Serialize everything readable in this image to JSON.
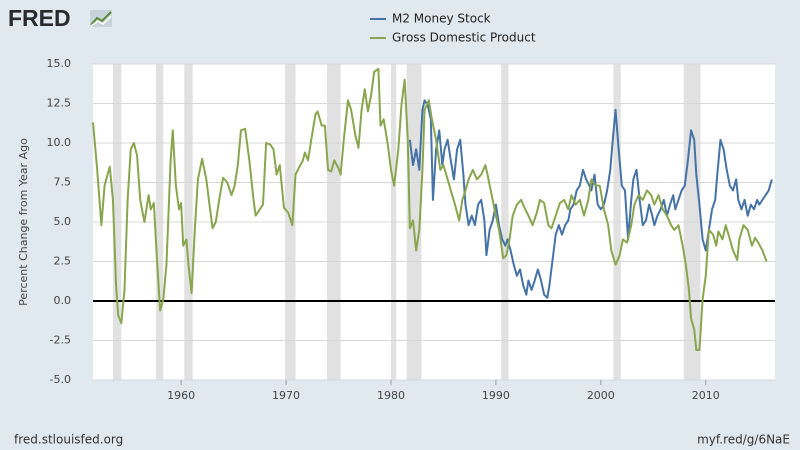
{
  "chart_data": {
    "type": "line",
    "logo": "FRED",
    "ylabel": "Percent Change from Year Ago",
    "source": "fred.stlouisfed.org",
    "link": "myf.red/g/6NaE",
    "xlim": [
      1951.6,
      2016.6
    ],
    "xticks": [
      1960,
      1970,
      1980,
      1990,
      2000,
      2010
    ],
    "ylim": [
      -5,
      15
    ],
    "yticks": [
      {
        "value": -5,
        "label": "-5.0"
      },
      {
        "value": -2.5,
        "label": "-2.5"
      },
      {
        "value": 0,
        "label": "0.0"
      },
      {
        "value": 2.5,
        "label": "2.5"
      },
      {
        "value": 5,
        "label": "5.0"
      },
      {
        "value": 7.5,
        "label": "7.5"
      },
      {
        "value": 10,
        "label": "10.0"
      },
      {
        "value": 12.5,
        "label": "12.5"
      },
      {
        "value": 15,
        "label": "15.0"
      }
    ],
    "grid": true,
    "recession_color": "#e1e1e1",
    "recessions": [
      [
        1953.5,
        1954.3
      ],
      [
        1957.6,
        1958.3
      ],
      [
        1960.3,
        1961.1
      ],
      [
        1969.9,
        1970.9
      ],
      [
        1973.9,
        1975.2
      ],
      [
        1980.0,
        1980.5
      ],
      [
        1981.5,
        1982.9
      ],
      [
        1990.5,
        1991.2
      ],
      [
        2001.2,
        2001.9
      ],
      [
        2007.9,
        2009.5
      ]
    ],
    "series": [
      {
        "name": "M2 Money Stock",
        "color": "#4572a7",
        "x": [
          1981.8,
          1982.1,
          1982.4,
          1982.7,
          1983.0,
          1983.2,
          1983.5,
          1983.8,
          1984.0,
          1984.3,
          1984.6,
          1984.9,
          1985.1,
          1985.4,
          1985.7,
          1986.0,
          1986.3,
          1986.6,
          1986.9,
          1987.1,
          1987.4,
          1987.7,
          1988.0,
          1988.3,
          1988.6,
          1988.9,
          1989.1,
          1989.4,
          1989.7,
          1990.0,
          1990.3,
          1990.6,
          1990.9,
          1991.1,
          1991.4,
          1991.7,
          1992.0,
          1992.3,
          1992.6,
          1992.9,
          1993.1,
          1993.4,
          1993.7,
          1994.0,
          1994.3,
          1994.6,
          1994.9,
          1995.1,
          1995.4,
          1995.7,
          1996.0,
          1996.3,
          1996.6,
          1996.9,
          1997.1,
          1997.4,
          1997.7,
          1998.0,
          1998.3,
          1998.6,
          1998.9,
          1999.1,
          1999.4,
          1999.7,
          2000.0,
          2000.3,
          2000.6,
          2000.9,
          2001.1,
          2001.4,
          2001.7,
          2002.0,
          2002.3,
          2002.6,
          2002.9,
          2003.1,
          2003.4,
          2003.7,
          2004.0,
          2004.3,
          2004.6,
          2004.9,
          2005.1,
          2005.4,
          2005.7,
          2006.0,
          2006.3,
          2006.6,
          2006.9,
          2007.1,
          2007.4,
          2007.7,
          2008.0,
          2008.3,
          2008.6,
          2008.9,
          2009.1,
          2009.4,
          2009.7,
          2010.0,
          2010.3,
          2010.6,
          2010.9,
          2011.1,
          2011.4,
          2011.7,
          2012.0,
          2012.3,
          2012.6,
          2012.9,
          2013.1,
          2013.4,
          2013.7,
          2014.0,
          2014.3,
          2014.6,
          2014.9,
          2015.1,
          2015.4,
          2015.7,
          2016.0,
          2016.3
        ],
        "values": [
          10.2,
          8.6,
          9.6,
          8.3,
          12.1,
          12.7,
          12.4,
          11.5,
          6.4,
          9.6,
          10.8,
          8.6,
          9.6,
          10.2,
          8.9,
          7.7,
          9.6,
          10.2,
          8.0,
          6.1,
          4.8,
          5.4,
          4.8,
          6.1,
          6.4,
          5.1,
          2.9,
          4.5,
          5.1,
          6.1,
          4.8,
          3.9,
          3.5,
          3.9,
          3.2,
          2.3,
          1.6,
          2.0,
          1.0,
          0.4,
          1.3,
          0.7,
          1.3,
          2.0,
          1.3,
          0.4,
          0.2,
          1.0,
          2.6,
          4.2,
          4.8,
          4.2,
          4.8,
          5.1,
          5.8,
          6.1,
          7.0,
          7.3,
          8.3,
          7.7,
          7.3,
          7.0,
          8.0,
          6.1,
          5.8,
          6.1,
          7.0,
          8.3,
          9.9,
          12.1,
          9.6,
          7.3,
          7.0,
          3.9,
          6.4,
          7.7,
          8.3,
          6.4,
          4.8,
          5.1,
          6.1,
          5.4,
          4.8,
          5.4,
          5.8,
          6.4,
          5.4,
          6.1,
          6.7,
          5.8,
          6.4,
          7.0,
          7.3,
          8.9,
          10.8,
          10.2,
          8.0,
          6.1,
          3.9,
          3.2,
          4.5,
          5.8,
          6.4,
          8.0,
          10.2,
          9.6,
          8.3,
          7.3,
          7.0,
          7.7,
          6.4,
          5.8,
          6.4,
          5.4,
          6.1,
          5.8,
          6.4,
          6.1,
          6.4,
          6.7,
          7.0,
          7.7
        ]
      },
      {
        "name": "Gross Domestic Product",
        "color": "#89a54e",
        "x": [
          1951.6,
          1952.0,
          1952.4,
          1952.7,
          1953.2,
          1953.5,
          1953.8,
          1954.0,
          1954.3,
          1954.6,
          1954.9,
          1955.2,
          1955.5,
          1955.8,
          1956.1,
          1956.5,
          1956.9,
          1957.1,
          1957.4,
          1957.7,
          1958.0,
          1958.3,
          1958.6,
          1959.0,
          1959.2,
          1959.5,
          1959.8,
          1960.0,
          1960.2,
          1960.5,
          1960.7,
          1961.0,
          1961.3,
          1961.6,
          1962.0,
          1962.4,
          1962.7,
          1963.0,
          1963.3,
          1963.7,
          1964.0,
          1964.4,
          1964.8,
          1965.1,
          1965.4,
          1965.7,
          1966.1,
          1966.5,
          1966.9,
          1967.1,
          1967.5,
          1967.8,
          1968.1,
          1968.5,
          1968.8,
          1969.1,
          1969.4,
          1969.8,
          1970.2,
          1970.6,
          1970.9,
          1971.2,
          1971.6,
          1971.8,
          1972.1,
          1972.4,
          1972.8,
          1973.0,
          1973.4,
          1973.7,
          1974.0,
          1974.3,
          1974.6,
          1975.0,
          1975.2,
          1975.5,
          1975.9,
          1976.2,
          1976.6,
          1976.9,
          1977.2,
          1977.5,
          1977.8,
          1978.1,
          1978.4,
          1978.8,
          1979.0,
          1979.3,
          1979.7,
          1980.0,
          1980.3,
          1980.7,
          1981.0,
          1981.3,
          1981.6,
          1981.8,
          1982.1,
          1982.4,
          1982.7,
          1983.0,
          1983.2,
          1983.6,
          1983.9,
          1984.3,
          1984.7,
          1985.0,
          1985.4,
          1985.7,
          1986.1,
          1986.5,
          1986.8,
          1987.1,
          1987.4,
          1987.8,
          1988.2,
          1988.6,
          1989.0,
          1989.2,
          1989.6,
          1990.0,
          1990.3,
          1990.7,
          1991.0,
          1991.3,
          1991.6,
          1992.0,
          1992.4,
          1992.8,
          1993.1,
          1993.5,
          1993.9,
          1994.2,
          1994.6,
          1995.0,
          1995.3,
          1995.7,
          1996.1,
          1996.5,
          1996.9,
          1997.2,
          1997.6,
          1998.0,
          1998.4,
          1998.8,
          1999.1,
          1999.5,
          1999.9,
          2000.3,
          2000.7,
          2001.0,
          2001.4,
          2001.8,
          2002.1,
          2002.5,
          2002.9,
          2003.2,
          2003.6,
          2004.0,
          2004.4,
          2004.8,
          2005.1,
          2005.5,
          2005.9,
          2006.3,
          2006.7,
          2007.0,
          2007.4,
          2007.8,
          2008.1,
          2008.4,
          2008.6,
          2008.9,
          2009.1,
          2009.4,
          2009.7,
          2010.0,
          2010.3,
          2010.7,
          2011.0,
          2011.2,
          2011.6,
          2011.9,
          2012.3,
          2012.6,
          2013.0,
          2013.2,
          2013.6,
          2014.0,
          2014.4,
          2014.7,
          2015.0,
          2015.4,
          2015.8
        ],
        "values": [
          11.3,
          8.3,
          4.8,
          7.3,
          8.5,
          6.4,
          1.0,
          -0.9,
          -1.4,
          0.7,
          6.4,
          9.6,
          10.0,
          9.2,
          6.4,
          5.0,
          6.7,
          5.8,
          6.2,
          2.6,
          -0.6,
          0.1,
          2.3,
          8.9,
          10.8,
          7.3,
          5.8,
          6.2,
          3.5,
          3.9,
          2.3,
          0.5,
          4.5,
          7.7,
          9.0,
          7.7,
          6.1,
          4.6,
          5.0,
          6.7,
          7.8,
          7.5,
          6.7,
          7.3,
          8.6,
          10.8,
          10.9,
          8.9,
          6.4,
          5.4,
          5.8,
          6.1,
          10.0,
          9.9,
          9.6,
          8.0,
          8.6,
          5.9,
          5.6,
          4.8,
          8.0,
          8.4,
          8.9,
          9.4,
          8.9,
          10.2,
          11.8,
          12.0,
          11.1,
          11.1,
          8.3,
          8.2,
          8.9,
          8.4,
          8.0,
          10.2,
          12.7,
          12.1,
          10.5,
          9.7,
          12.1,
          13.4,
          12.0,
          13.0,
          14.5,
          14.7,
          11.1,
          11.5,
          9.9,
          8.3,
          7.3,
          9.6,
          12.4,
          14.0,
          10.2,
          4.6,
          5.1,
          3.2,
          4.5,
          8.3,
          12.1,
          12.7,
          11.5,
          10.2,
          8.3,
          8.6,
          7.7,
          7.0,
          6.1,
          5.1,
          6.4,
          7.0,
          7.7,
          8.3,
          7.7,
          8.0,
          8.6,
          8.0,
          6.7,
          5.4,
          4.5,
          2.7,
          2.9,
          3.9,
          5.4,
          6.1,
          6.4,
          5.8,
          5.4,
          4.8,
          5.6,
          6.4,
          6.2,
          4.8,
          4.6,
          5.4,
          6.2,
          6.4,
          5.8,
          6.7,
          6.1,
          6.4,
          5.4,
          6.4,
          7.7,
          7.3,
          7.3,
          5.8,
          4.8,
          3.2,
          2.3,
          2.9,
          3.9,
          3.7,
          4.8,
          6.1,
          6.7,
          6.4,
          7.0,
          6.7,
          6.1,
          6.7,
          5.8,
          5.4,
          4.8,
          4.5,
          4.8,
          3.5,
          2.3,
          0.7,
          -1.1,
          -1.8,
          -3.1,
          -3.1,
          0.1,
          1.6,
          4.5,
          4.2,
          3.5,
          4.4,
          3.9,
          4.8,
          3.9,
          3.2,
          2.6,
          3.9,
          4.8,
          4.5,
          3.5,
          4.0,
          3.7,
          3.2,
          2.5
        ]
      }
    ]
  }
}
